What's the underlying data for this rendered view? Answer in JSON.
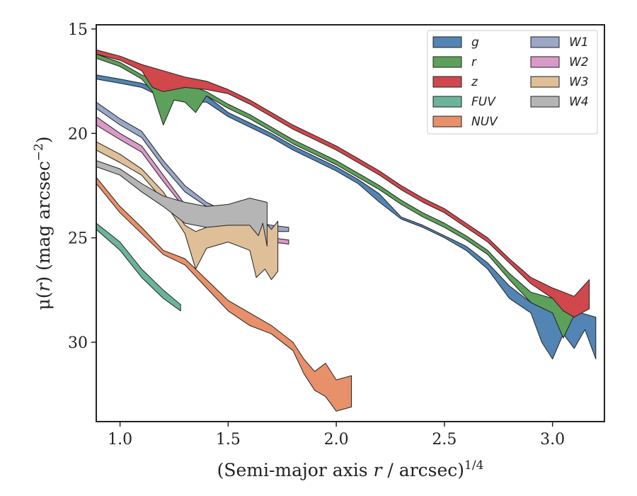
{
  "chart_data": {
    "type": "area",
    "xlabel_main": "(Semi-major axis ",
    "xlabel_var": "r",
    "xlabel_rest": " / arcsec)",
    "xlabel_exp": "1/4",
    "ylabel_main": "μ(",
    "ylabel_var": "r",
    "ylabel_rest": ") (mag arcsec",
    "ylabel_exp": "−2",
    "ylabel_close": ")",
    "xlim": [
      0.89,
      3.24
    ],
    "ylim": [
      33.8,
      14.8
    ],
    "y_inverted": true,
    "grid": false,
    "legend_position": "top-right",
    "legend_columns": 2,
    "x_ticks": [
      {
        "value": 1.0,
        "label": "1.0"
      },
      {
        "value": 1.5,
        "label": "1.5"
      },
      {
        "value": 2.0,
        "label": "2.0"
      },
      {
        "value": 2.5,
        "label": "2.5"
      },
      {
        "value": 3.0,
        "label": "3.0"
      }
    ],
    "y_ticks": [
      {
        "value": 15,
        "label": "15"
      },
      {
        "value": 20,
        "label": "20"
      },
      {
        "value": 25,
        "label": "25"
      },
      {
        "value": 30,
        "label": "30"
      }
    ],
    "series": [
      {
        "name": "FUV",
        "color": "#6bb49a",
        "upper": [
          [
            0.89,
            24.3
          ],
          [
            1.0,
            25.2
          ],
          [
            1.1,
            26.5
          ],
          [
            1.2,
            27.5
          ],
          [
            1.28,
            28.2
          ]
        ],
        "lower": [
          [
            0.89,
            24.6
          ],
          [
            1.0,
            25.6
          ],
          [
            1.1,
            26.9
          ],
          [
            1.2,
            27.9
          ],
          [
            1.28,
            28.5
          ]
        ]
      },
      {
        "name": "NUV",
        "color": "#e8906a",
        "upper": [
          [
            0.89,
            22.1
          ],
          [
            1.0,
            23.5
          ],
          [
            1.1,
            24.5
          ],
          [
            1.2,
            25.6
          ],
          [
            1.3,
            26.0
          ],
          [
            1.4,
            27.0
          ],
          [
            1.5,
            28.0
          ],
          [
            1.6,
            28.6
          ],
          [
            1.7,
            29.2
          ],
          [
            1.8,
            30.0
          ],
          [
            1.85,
            30.8
          ],
          [
            1.9,
            31.4
          ],
          [
            1.95,
            31.0
          ],
          [
            2.0,
            31.8
          ],
          [
            2.07,
            31.6
          ]
        ],
        "lower": [
          [
            0.89,
            22.4
          ],
          [
            1.0,
            23.8
          ],
          [
            1.1,
            24.8
          ],
          [
            1.2,
            25.8
          ],
          [
            1.3,
            26.3
          ],
          [
            1.4,
            27.4
          ],
          [
            1.5,
            28.5
          ],
          [
            1.6,
            29.2
          ],
          [
            1.7,
            29.6
          ],
          [
            1.8,
            30.4
          ],
          [
            1.85,
            31.5
          ],
          [
            1.9,
            32.3
          ],
          [
            1.95,
            32.6
          ],
          [
            2.0,
            33.3
          ],
          [
            2.07,
            33.1
          ]
        ]
      },
      {
        "name": "W1",
        "color": "#9aa7c8",
        "upper": [
          [
            0.89,
            18.5
          ],
          [
            1.0,
            19.3
          ],
          [
            1.1,
            19.9
          ],
          [
            1.2,
            21.3
          ],
          [
            1.3,
            22.5
          ],
          [
            1.4,
            23.3
          ],
          [
            1.5,
            23.8
          ],
          [
            1.6,
            24.2
          ],
          [
            1.7,
            24.4
          ],
          [
            1.78,
            24.5
          ]
        ],
        "lower": [
          [
            0.89,
            18.8
          ],
          [
            1.0,
            19.6
          ],
          [
            1.1,
            20.2
          ],
          [
            1.2,
            21.6
          ],
          [
            1.3,
            22.8
          ],
          [
            1.4,
            23.5
          ],
          [
            1.5,
            24.0
          ],
          [
            1.6,
            24.4
          ],
          [
            1.7,
            24.7
          ],
          [
            1.78,
            24.7
          ]
        ]
      },
      {
        "name": "W2",
        "color": "#da9ac8",
        "upper": [
          [
            0.89,
            19.2
          ],
          [
            1.0,
            20.0
          ],
          [
            1.1,
            20.6
          ],
          [
            1.2,
            22.0
          ],
          [
            1.3,
            23.4
          ],
          [
            1.4,
            24.0
          ],
          [
            1.5,
            24.5
          ],
          [
            1.6,
            24.8
          ],
          [
            1.7,
            25.0
          ],
          [
            1.78,
            25.1
          ]
        ],
        "lower": [
          [
            0.89,
            19.6
          ],
          [
            1.0,
            20.3
          ],
          [
            1.1,
            20.9
          ],
          [
            1.2,
            22.3
          ],
          [
            1.3,
            23.6
          ],
          [
            1.4,
            24.2
          ],
          [
            1.5,
            24.7
          ],
          [
            1.6,
            25.0
          ],
          [
            1.7,
            25.2
          ],
          [
            1.78,
            25.3
          ]
        ]
      },
      {
        "name": "W3",
        "color": "#dfbf98",
        "upper": [
          [
            0.89,
            20.4
          ],
          [
            1.0,
            21.0
          ],
          [
            1.1,
            21.7
          ],
          [
            1.2,
            22.8
          ],
          [
            1.3,
            24.4
          ],
          [
            1.35,
            24.7
          ],
          [
            1.4,
            24.5
          ],
          [
            1.5,
            24.2
          ],
          [
            1.6,
            24.3
          ],
          [
            1.65,
            24.0
          ],
          [
            1.7,
            24.6
          ],
          [
            1.73,
            24.2
          ]
        ],
        "lower": [
          [
            0.89,
            20.8
          ],
          [
            1.0,
            21.4
          ],
          [
            1.1,
            22.0
          ],
          [
            1.2,
            23.2
          ],
          [
            1.3,
            24.8
          ],
          [
            1.35,
            26.5
          ],
          [
            1.4,
            25.5
          ],
          [
            1.5,
            25.2
          ],
          [
            1.6,
            25.6
          ],
          [
            1.63,
            26.9
          ],
          [
            1.67,
            26.5
          ],
          [
            1.7,
            27.0
          ],
          [
            1.73,
            26.6
          ]
        ]
      },
      {
        "name": "W4",
        "color": "#b5b5b5",
        "upper": [
          [
            0.89,
            21.3
          ],
          [
            1.0,
            21.7
          ],
          [
            1.1,
            22.4
          ],
          [
            1.2,
            23.0
          ],
          [
            1.3,
            23.3
          ],
          [
            1.4,
            23.5
          ],
          [
            1.5,
            23.4
          ],
          [
            1.6,
            23.1
          ],
          [
            1.68,
            23.3
          ]
        ],
        "lower": [
          [
            0.89,
            21.6
          ],
          [
            1.0,
            22.0
          ],
          [
            1.1,
            22.8
          ],
          [
            1.2,
            23.5
          ],
          [
            1.3,
            24.3
          ],
          [
            1.4,
            24.5
          ],
          [
            1.5,
            24.4
          ],
          [
            1.6,
            24.4
          ],
          [
            1.64,
            24.9
          ],
          [
            1.66,
            24.3
          ],
          [
            1.68,
            25.4
          ]
        ]
      },
      {
        "name": "g",
        "color": "#5284b4",
        "upper": [
          [
            0.89,
            17.2
          ],
          [
            1.0,
            17.4
          ],
          [
            1.1,
            17.6
          ],
          [
            1.2,
            18.0
          ],
          [
            1.3,
            18.2
          ],
          [
            1.4,
            18.2
          ],
          [
            1.5,
            19.0
          ],
          [
            1.6,
            19.5
          ],
          [
            1.7,
            20.0
          ],
          [
            1.8,
            20.6
          ],
          [
            1.9,
            21.1
          ],
          [
            2.0,
            21.6
          ],
          [
            2.1,
            22.2
          ],
          [
            2.2,
            22.9
          ],
          [
            2.3,
            24.0
          ],
          [
            2.4,
            24.4
          ],
          [
            2.5,
            24.9
          ],
          [
            2.6,
            25.4
          ],
          [
            2.7,
            26.2
          ],
          [
            2.8,
            27.3
          ],
          [
            2.9,
            28.1
          ],
          [
            3.0,
            28.3
          ],
          [
            3.1,
            28.5
          ],
          [
            3.2,
            28.8
          ]
        ],
        "lower": [
          [
            0.89,
            17.4
          ],
          [
            1.0,
            17.6
          ],
          [
            1.1,
            17.8
          ],
          [
            1.2,
            18.3
          ],
          [
            1.3,
            18.5
          ],
          [
            1.4,
            18.5
          ],
          [
            1.5,
            19.2
          ],
          [
            1.6,
            19.7
          ],
          [
            1.7,
            20.2
          ],
          [
            1.8,
            20.8
          ],
          [
            1.9,
            21.3
          ],
          [
            2.0,
            21.8
          ],
          [
            2.1,
            22.4
          ],
          [
            2.2,
            23.3
          ],
          [
            2.3,
            24.1
          ],
          [
            2.4,
            24.5
          ],
          [
            2.5,
            25.0
          ],
          [
            2.6,
            25.6
          ],
          [
            2.7,
            26.5
          ],
          [
            2.8,
            27.9
          ],
          [
            2.9,
            28.6
          ],
          [
            2.95,
            30.0
          ],
          [
            3.0,
            30.8
          ],
          [
            3.05,
            29.6
          ],
          [
            3.1,
            30.3
          ],
          [
            3.15,
            29.4
          ],
          [
            3.2,
            30.8
          ]
        ]
      },
      {
        "name": "r",
        "color": "#5da05a",
        "upper": [
          [
            0.89,
            16.2
          ],
          [
            1.0,
            16.6
          ],
          [
            1.1,
            17.2
          ],
          [
            1.2,
            17.6
          ],
          [
            1.3,
            17.4
          ],
          [
            1.35,
            17.8
          ],
          [
            1.4,
            18.0
          ],
          [
            1.5,
            18.6
          ],
          [
            1.6,
            19.1
          ],
          [
            1.7,
            19.7
          ],
          [
            1.8,
            20.3
          ],
          [
            1.9,
            20.8
          ],
          [
            2.0,
            21.3
          ],
          [
            2.1,
            21.9
          ],
          [
            2.2,
            22.5
          ],
          [
            2.3,
            23.2
          ],
          [
            2.4,
            23.8
          ],
          [
            2.5,
            24.3
          ],
          [
            2.6,
            24.9
          ],
          [
            2.7,
            25.6
          ],
          [
            2.8,
            26.7
          ],
          [
            2.9,
            27.6
          ],
          [
            3.0,
            27.9
          ],
          [
            3.1,
            28.3
          ]
        ],
        "lower": [
          [
            0.89,
            16.4
          ],
          [
            1.0,
            16.8
          ],
          [
            1.1,
            17.4
          ],
          [
            1.15,
            18.0
          ],
          [
            1.2,
            19.6
          ],
          [
            1.25,
            18.4
          ],
          [
            1.3,
            18.5
          ],
          [
            1.35,
            19.0
          ],
          [
            1.4,
            18.2
          ],
          [
            1.5,
            18.8
          ],
          [
            1.6,
            19.3
          ],
          [
            1.7,
            19.9
          ],
          [
            1.8,
            20.5
          ],
          [
            1.9,
            21.0
          ],
          [
            2.0,
            21.5
          ],
          [
            2.1,
            22.1
          ],
          [
            2.2,
            22.7
          ],
          [
            2.3,
            23.4
          ],
          [
            2.4,
            24.0
          ],
          [
            2.5,
            24.5
          ],
          [
            2.6,
            25.1
          ],
          [
            2.7,
            25.8
          ],
          [
            2.8,
            27.0
          ],
          [
            2.9,
            28.1
          ],
          [
            3.0,
            28.6
          ],
          [
            3.05,
            29.8
          ],
          [
            3.1,
            28.7
          ]
        ]
      },
      {
        "name": "z",
        "color": "#d0474c",
        "upper": [
          [
            0.89,
            16.0
          ],
          [
            1.0,
            16.3
          ],
          [
            1.1,
            16.7
          ],
          [
            1.2,
            17.0
          ],
          [
            1.3,
            17.3
          ],
          [
            1.4,
            17.5
          ],
          [
            1.5,
            17.9
          ],
          [
            1.6,
            18.4
          ],
          [
            1.7,
            19.0
          ],
          [
            1.8,
            19.6
          ],
          [
            1.9,
            20.1
          ],
          [
            2.0,
            20.6
          ],
          [
            2.1,
            21.2
          ],
          [
            2.2,
            21.8
          ],
          [
            2.3,
            22.5
          ],
          [
            2.4,
            23.1
          ],
          [
            2.5,
            23.6
          ],
          [
            2.6,
            24.3
          ],
          [
            2.7,
            25.0
          ],
          [
            2.8,
            26.0
          ],
          [
            2.9,
            26.9
          ],
          [
            3.0,
            27.4
          ],
          [
            3.1,
            27.8
          ],
          [
            3.17,
            27.0
          ]
        ],
        "lower": [
          [
            0.89,
            16.2
          ],
          [
            1.0,
            16.5
          ],
          [
            1.1,
            17.0
          ],
          [
            1.15,
            17.8
          ],
          [
            1.2,
            18.0
          ],
          [
            1.3,
            17.8
          ],
          [
            1.4,
            17.9
          ],
          [
            1.5,
            18.1
          ],
          [
            1.6,
            18.6
          ],
          [
            1.7,
            19.2
          ],
          [
            1.8,
            19.8
          ],
          [
            1.9,
            20.3
          ],
          [
            2.0,
            20.8
          ],
          [
            2.1,
            21.4
          ],
          [
            2.2,
            22.0
          ],
          [
            2.3,
            22.7
          ],
          [
            2.4,
            23.3
          ],
          [
            2.5,
            23.8
          ],
          [
            2.6,
            24.5
          ],
          [
            2.7,
            25.2
          ],
          [
            2.8,
            26.2
          ],
          [
            2.9,
            27.2
          ],
          [
            3.0,
            27.9
          ],
          [
            3.05,
            28.5
          ],
          [
            3.1,
            28.8
          ],
          [
            3.17,
            28.4
          ]
        ]
      }
    ],
    "legend_order": [
      "g",
      "r",
      "z",
      "FUV",
      "NUV",
      "W1",
      "W2",
      "W3",
      "W4"
    ],
    "draw_order": [
      "FUV",
      "NUV",
      "W1",
      "W2",
      "W3",
      "W4",
      "g",
      "r",
      "z"
    ]
  }
}
